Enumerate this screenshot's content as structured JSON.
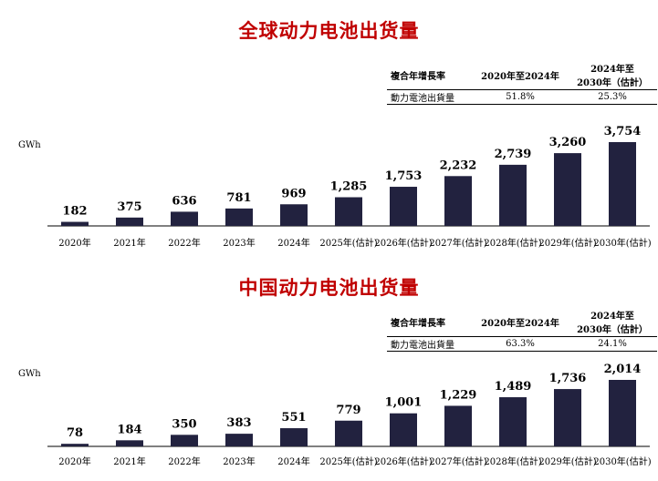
{
  "global": {
    "title": "全球动力电池出货量",
    "unit": "GWh",
    "table": {
      "header": [
        "複合年增長率",
        "2020年至2024年",
        "2024年至\n2030年（估計）"
      ],
      "row": [
        "動力電池出貨量",
        "51.8%",
        "25.3%"
      ]
    }
  },
  "china": {
    "title": "中国动力电池出货量",
    "unit": "GWh",
    "table": {
      "header": [
        "複合年增長率",
        "2020年至2024年",
        "2024年至\n2030年（估計）"
      ],
      "row": [
        "動力電池出貨量",
        "63.3%",
        "24.1%"
      ]
    }
  },
  "colors": {
    "bar": "#22223f",
    "title": "#c00000"
  },
  "chart_data": [
    {
      "type": "bar",
      "title": "全球动力电池出货量",
      "ylabel": "GWh",
      "categories": [
        "2020年",
        "2021年",
        "2022年",
        "2023年",
        "2024年",
        "2025年(估計)",
        "2026年(估計)",
        "2027年(估計)",
        "2028年(估計)",
        "2029年(估計)",
        "2030年(估計)"
      ],
      "values": [
        182,
        375,
        636,
        781,
        969,
        1285,
        1753,
        2232,
        2739,
        3260,
        3754
      ],
      "value_labels": [
        "182",
        "375",
        "636",
        "781",
        "969",
        "1,285",
        "1,753",
        "2,232",
        "2,739",
        "3,260",
        "3,754"
      ],
      "ylim": [
        0,
        3754
      ]
    },
    {
      "type": "bar",
      "title": "中国动力电池出货量",
      "ylabel": "GWh",
      "categories": [
        "2020年",
        "2021年",
        "2022年",
        "2023年",
        "2024年",
        "2025年(估計)",
        "2026年(估計)",
        "2027年(估計)",
        "2028年(估計)",
        "2029年(估計)",
        "2030年(估計)"
      ],
      "values": [
        78,
        184,
        350,
        383,
        551,
        779,
        1001,
        1229,
        1489,
        1736,
        2014
      ],
      "value_labels": [
        "78",
        "184",
        "350",
        "383",
        "551",
        "779",
        "1,001",
        "1,229",
        "1,489",
        "1,736",
        "2,014"
      ],
      "ylim": [
        0,
        2014
      ]
    }
  ]
}
